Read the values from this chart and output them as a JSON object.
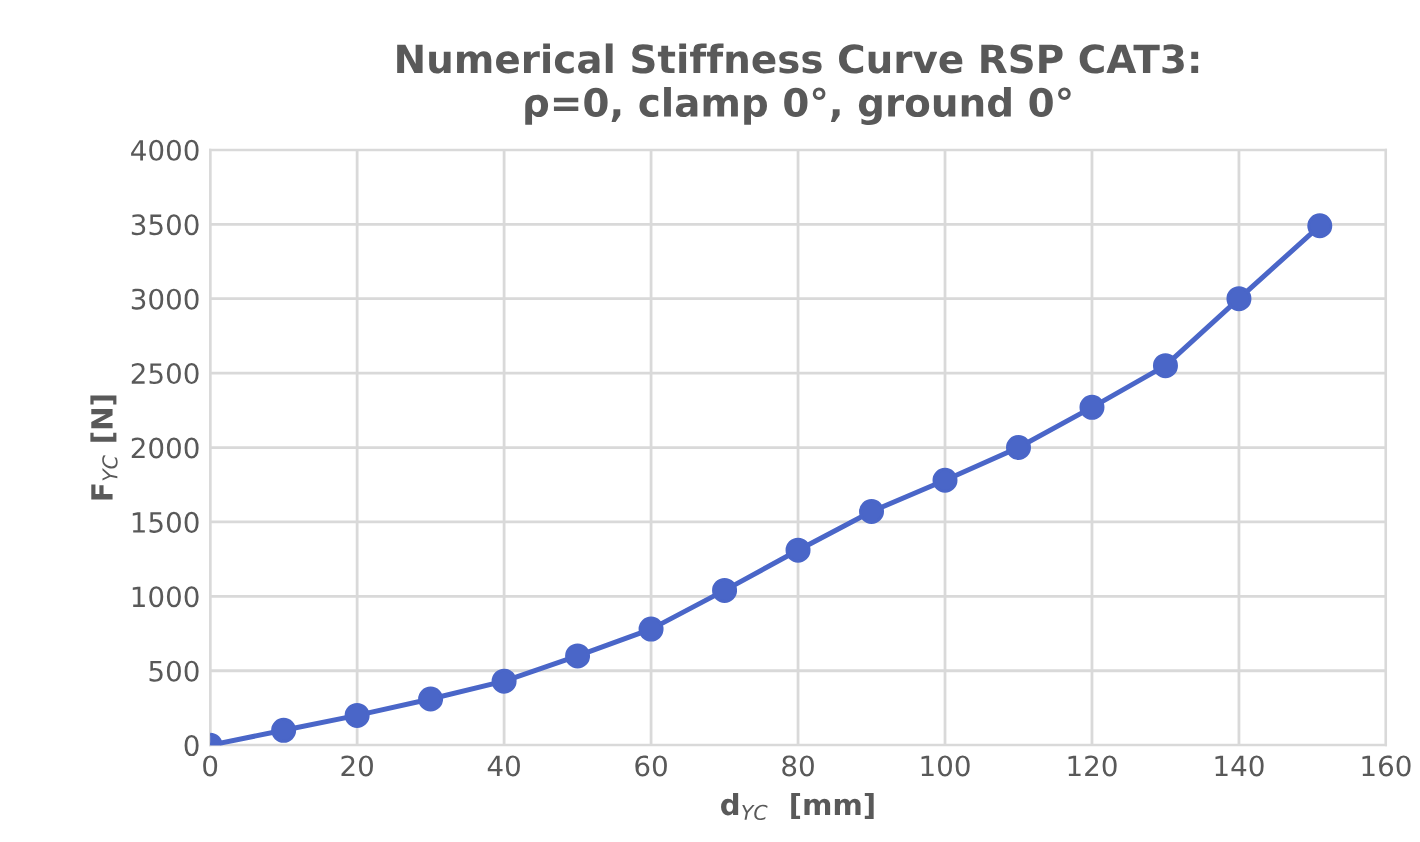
{
  "chart_data": {
    "type": "line",
    "title": "Numerical Stiffness Curve RSP CAT3:\nρ=0, clamp 0°, ground 0°",
    "xlabel": "d$_{YC}$  [mm]",
    "ylabel": "F$_{YC}$ [N]",
    "x": [
      0,
      10,
      20,
      30,
      40,
      50,
      60,
      70,
      80,
      90,
      100,
      110,
      120,
      130,
      140,
      151
    ],
    "series": [
      {
        "color": "#4a66c8",
        "values": [
          0,
          100,
          200,
          310,
          430,
          600,
          780,
          1040,
          1310,
          1570,
          1780,
          2000,
          2270,
          2550,
          3000,
          3490
        ]
      }
    ],
    "xlim": [
      0,
      160
    ],
    "xticks": [
      0,
      20,
      40,
      60,
      80,
      100,
      120,
      140,
      160
    ],
    "ylim": [
      0,
      4000
    ],
    "yticks": [
      0,
      500,
      1000,
      1500,
      2000,
      2500,
      3000,
      3500,
      4000
    ],
    "grid": true,
    "marker": "circle",
    "line_style": "solid"
  }
}
